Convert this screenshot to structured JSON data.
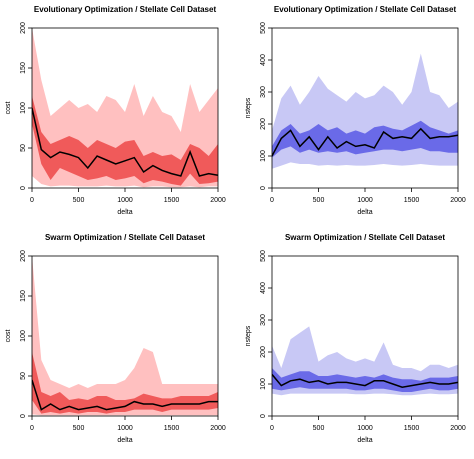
{
  "chart_data": [
    {
      "type": "area",
      "title": "Evolutionary Optimization / Stellate Cell Dataset",
      "xlabel": "delta",
      "ylabel": "cost",
      "xlim": [
        0,
        2000
      ],
      "ylim": [
        0,
        200
      ],
      "xticks": [
        0,
        500,
        1000,
        1500,
        2000
      ],
      "yticks": [
        0,
        50,
        100,
        150,
        200
      ],
      "colors": {
        "outer": "#ffc0c0",
        "inner": "#f05a5a",
        "line": "#000000"
      },
      "x": [
        0,
        100,
        200,
        300,
        400,
        500,
        600,
        700,
        800,
        900,
        1000,
        1100,
        1200,
        1300,
        1400,
        1500,
        1600,
        1700,
        1800,
        1900,
        2000
      ],
      "series": [
        {
          "role": "outer_upper",
          "values": [
            205,
            135,
            90,
            100,
            110,
            100,
            105,
            95,
            115,
            110,
            95,
            130,
            90,
            115,
            95,
            90,
            70,
            130,
            95,
            110,
            125
          ]
        },
        {
          "role": "inner_upper",
          "values": [
            115,
            70,
            55,
            60,
            65,
            60,
            50,
            60,
            55,
            50,
            58,
            60,
            40,
            45,
            40,
            42,
            35,
            55,
            50,
            40,
            55
          ]
        },
        {
          "role": "median",
          "values": [
            100,
            48,
            38,
            45,
            42,
            38,
            25,
            40,
            35,
            30,
            34,
            38,
            20,
            28,
            22,
            18,
            15,
            45,
            15,
            18,
            16
          ]
        },
        {
          "role": "inner_lower",
          "values": [
            80,
            30,
            10,
            25,
            20,
            15,
            10,
            12,
            15,
            10,
            12,
            15,
            6,
            10,
            8,
            5,
            3,
            18,
            5,
            6,
            8
          ]
        },
        {
          "role": "outer_lower",
          "values": [
            15,
            5,
            2,
            3,
            3,
            2,
            2,
            2,
            3,
            2,
            2,
            3,
            1,
            2,
            2,
            1,
            1,
            2,
            1,
            2,
            2
          ]
        }
      ]
    },
    {
      "type": "area",
      "title": "Evolutionary Optimization / Stellate Cell Dataset",
      "xlabel": "delta",
      "ylabel": "nsteps",
      "xlim": [
        0,
        2000
      ],
      "ylim": [
        0,
        500
      ],
      "xticks": [
        0,
        500,
        1000,
        1500,
        2000
      ],
      "yticks": [
        0,
        100,
        200,
        300,
        400,
        500
      ],
      "colors": {
        "outer": "#c8c8f5",
        "inner": "#6a6ae8",
        "line": "#000000"
      },
      "x": [
        0,
        100,
        200,
        300,
        400,
        500,
        600,
        700,
        800,
        900,
        1000,
        1100,
        1200,
        1300,
        1400,
        1500,
        1600,
        1700,
        1800,
        1900,
        2000
      ],
      "series": [
        {
          "role": "outer_upper",
          "values": [
            180,
            280,
            320,
            260,
            300,
            350,
            310,
            290,
            270,
            300,
            280,
            290,
            320,
            300,
            260,
            300,
            420,
            300,
            290,
            250,
            270
          ]
        },
        {
          "role": "inner_upper",
          "values": [
            130,
            180,
            200,
            170,
            180,
            200,
            180,
            190,
            170,
            180,
            170,
            190,
            195,
            185,
            180,
            195,
            210,
            190,
            180,
            170,
            180
          ]
        },
        {
          "role": "median",
          "values": [
            100,
            155,
            180,
            130,
            160,
            120,
            160,
            125,
            145,
            130,
            135,
            125,
            175,
            155,
            160,
            155,
            185,
            155,
            160,
            160,
            165
          ]
        },
        {
          "role": "inner_lower",
          "values": [
            95,
            120,
            130,
            110,
            120,
            110,
            115,
            110,
            115,
            105,
            110,
            115,
            120,
            120,
            115,
            120,
            125,
            115,
            115,
            110,
            110
          ]
        },
        {
          "role": "outer_lower",
          "values": [
            60,
            70,
            80,
            75,
            75,
            70,
            72,
            70,
            72,
            70,
            70,
            72,
            75,
            72,
            70,
            72,
            75,
            72,
            70,
            70,
            70
          ]
        }
      ]
    },
    {
      "type": "area",
      "title": "Swarm Optimization / Stellate Cell Dataset",
      "xlabel": "delta",
      "ylabel": "cost",
      "xlim": [
        0,
        2000
      ],
      "ylim": [
        0,
        200
      ],
      "xticks": [
        0,
        500,
        1000,
        1500,
        2000
      ],
      "yticks": [
        0,
        50,
        100,
        150,
        200
      ],
      "colors": {
        "outer": "#ffc0c0",
        "inner": "#f05a5a",
        "line": "#000000"
      },
      "x": [
        0,
        100,
        200,
        300,
        400,
        500,
        600,
        700,
        800,
        900,
        1000,
        1100,
        1200,
        1300,
        1400,
        1500,
        1600,
        1700,
        1800,
        1900,
        2000
      ],
      "series": [
        {
          "role": "outer_upper",
          "values": [
            205,
            70,
            45,
            40,
            35,
            40,
            35,
            40,
            40,
            40,
            45,
            60,
            85,
            80,
            40,
            40,
            40,
            40,
            40,
            40,
            40
          ]
        },
        {
          "role": "inner_upper",
          "values": [
            80,
            30,
            25,
            30,
            20,
            22,
            20,
            25,
            25,
            20,
            20,
            22,
            28,
            25,
            22,
            22,
            25,
            25,
            25,
            25,
            30
          ]
        },
        {
          "role": "median",
          "values": [
            45,
            8,
            15,
            8,
            12,
            8,
            10,
            12,
            8,
            10,
            12,
            18,
            15,
            15,
            12,
            15,
            15,
            15,
            15,
            18,
            18
          ]
        },
        {
          "role": "inner_lower",
          "values": [
            20,
            3,
            5,
            3,
            5,
            3,
            5,
            5,
            3,
            5,
            5,
            8,
            8,
            8,
            5,
            8,
            8,
            8,
            8,
            8,
            10
          ]
        },
        {
          "role": "outer_lower",
          "values": [
            2,
            1,
            1,
            1,
            1,
            1,
            1,
            1,
            1,
            1,
            1,
            1,
            1,
            1,
            1,
            1,
            1,
            1,
            1,
            1,
            1
          ]
        }
      ]
    },
    {
      "type": "area",
      "title": "Swarm Optimization / Stellate Cell Dataset",
      "xlabel": "delta",
      "ylabel": "nsteps",
      "xlim": [
        0,
        2000
      ],
      "ylim": [
        0,
        500
      ],
      "xticks": [
        0,
        500,
        1000,
        1500,
        2000
      ],
      "yticks": [
        0,
        100,
        200,
        300,
        400,
        500
      ],
      "colors": {
        "outer": "#c8c8f5",
        "inner": "#6a6ae8",
        "line": "#000000"
      },
      "x": [
        0,
        100,
        200,
        300,
        400,
        500,
        600,
        700,
        800,
        900,
        1000,
        1100,
        1200,
        1300,
        1400,
        1500,
        1600,
        1700,
        1800,
        1900,
        2000
      ],
      "series": [
        {
          "role": "outer_upper",
          "values": [
            220,
            150,
            240,
            260,
            280,
            170,
            190,
            200,
            180,
            170,
            180,
            170,
            230,
            160,
            150,
            150,
            140,
            160,
            160,
            150,
            160
          ]
        },
        {
          "role": "inner_upper",
          "values": [
            150,
            120,
            130,
            140,
            140,
            125,
            125,
            130,
            125,
            120,
            125,
            120,
            130,
            120,
            115,
            115,
            110,
            120,
            120,
            120,
            125
          ]
        },
        {
          "role": "median",
          "values": [
            130,
            95,
            110,
            115,
            105,
            110,
            100,
            105,
            105,
            100,
            95,
            110,
            110,
            100,
            90,
            95,
            100,
            105,
            100,
            100,
            105
          ]
        },
        {
          "role": "inner_lower",
          "values": [
            85,
            80,
            85,
            90,
            85,
            85,
            85,
            85,
            85,
            80,
            80,
            85,
            85,
            80,
            75,
            75,
            80,
            85,
            80,
            80,
            85
          ]
        },
        {
          "role": "outer_lower",
          "values": [
            70,
            65,
            70,
            70,
            70,
            70,
            70,
            70,
            70,
            68,
            68,
            70,
            70,
            68,
            65,
            65,
            68,
            70,
            68,
            68,
            70
          ]
        }
      ]
    }
  ]
}
